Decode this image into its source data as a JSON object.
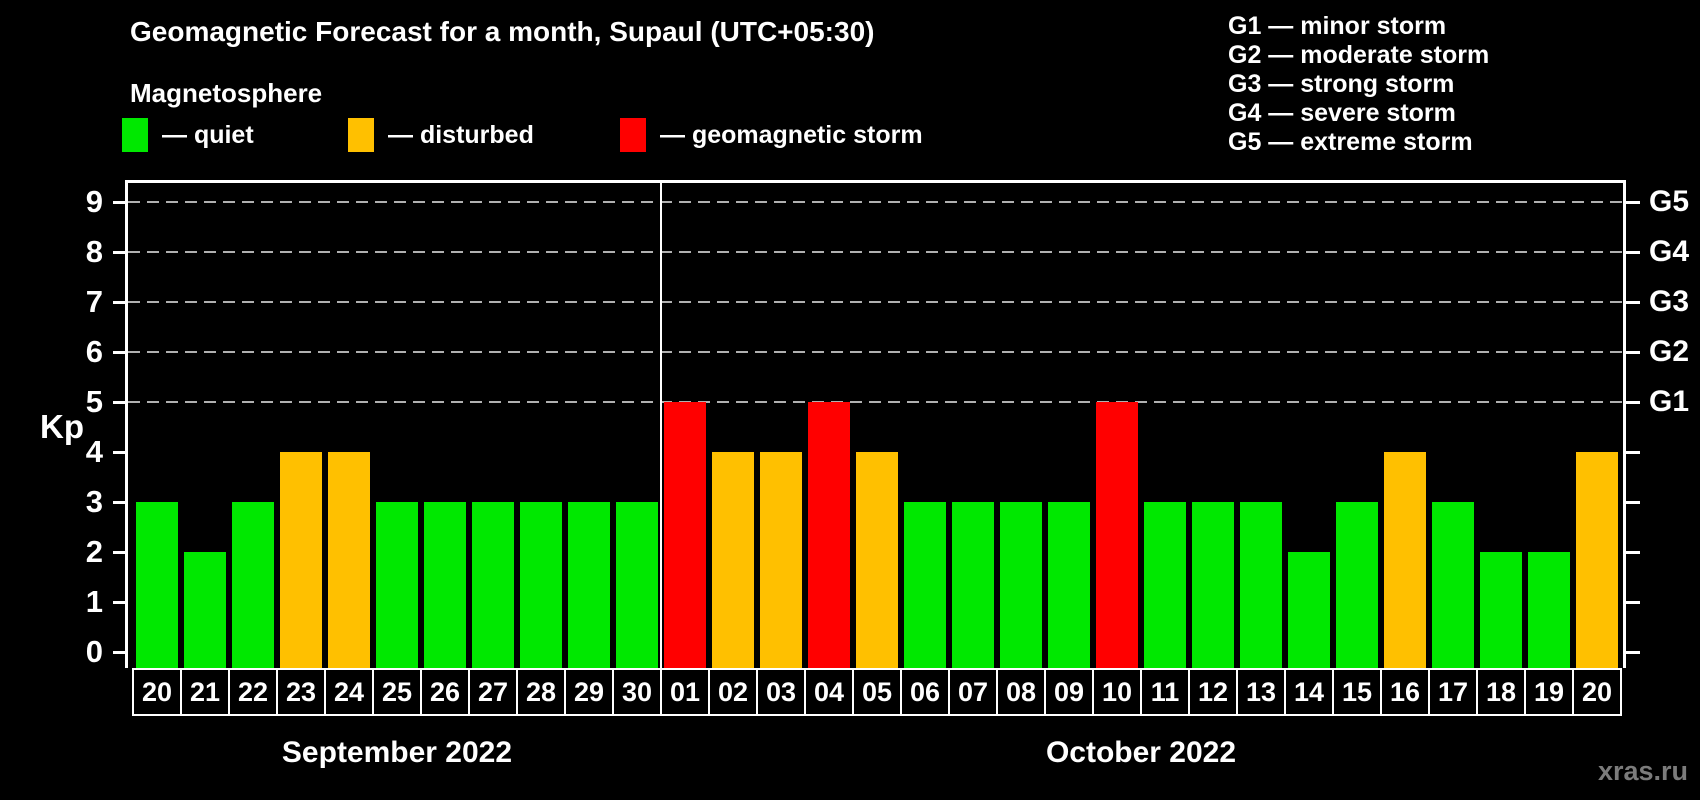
{
  "title": "Geomagnetic Forecast for a month, Supaul (UTC+05:30)",
  "subtitle": "Magnetosphere",
  "legend": {
    "quiet": {
      "label": "— quiet",
      "color": "#00e800"
    },
    "disturbed": {
      "label": "— disturbed",
      "color": "#ffc000"
    },
    "storm": {
      "label": "— geomagnetic storm",
      "color": "#ff0000"
    }
  },
  "g_legend": [
    "G1 — minor storm",
    "G2 — moderate storm",
    "G3 — strong storm",
    "G4 — severe storm",
    "G5 — extreme storm"
  ],
  "watermark": "xras.ru",
  "colors": {
    "background": "#000000",
    "axis": "#ffffff",
    "gridline": "#b0b0b0",
    "text": "#ffffff",
    "watermark": "#7b7b7b"
  },
  "chart_data": {
    "type": "bar",
    "title": "Geomagnetic Forecast for a month, Supaul (UTC+05:30)",
    "xlabel": "",
    "ylabel": "Kp",
    "ylim": [
      0,
      9
    ],
    "grid": "horizontal dashed lines at Kp 5,6,7,8,9",
    "legend_position": "top-left",
    "left_axis_ticks": [
      0,
      1,
      2,
      3,
      4,
      5,
      6,
      7,
      8,
      9
    ],
    "right_axis_labels": [
      {
        "kp": 5,
        "label": "G1"
      },
      {
        "kp": 6,
        "label": "G2"
      },
      {
        "kp": 7,
        "label": "G3"
      },
      {
        "kp": 8,
        "label": "G4"
      },
      {
        "kp": 9,
        "label": "G5"
      }
    ],
    "months": [
      {
        "label": "September 2022",
        "days": [
          {
            "day": "20",
            "kp": 3,
            "state": "quiet"
          },
          {
            "day": "21",
            "kp": 2,
            "state": "quiet"
          },
          {
            "day": "22",
            "kp": 3,
            "state": "quiet"
          },
          {
            "day": "23",
            "kp": 4,
            "state": "disturbed"
          },
          {
            "day": "24",
            "kp": 4,
            "state": "disturbed"
          },
          {
            "day": "25",
            "kp": 3,
            "state": "quiet"
          },
          {
            "day": "26",
            "kp": 3,
            "state": "quiet"
          },
          {
            "day": "27",
            "kp": 3,
            "state": "quiet"
          },
          {
            "day": "28",
            "kp": 3,
            "state": "quiet"
          },
          {
            "day": "29",
            "kp": 3,
            "state": "quiet"
          },
          {
            "day": "30",
            "kp": 3,
            "state": "quiet"
          }
        ]
      },
      {
        "label": "October 2022",
        "days": [
          {
            "day": "01",
            "kp": 5,
            "state": "storm"
          },
          {
            "day": "02",
            "kp": 4,
            "state": "disturbed"
          },
          {
            "day": "03",
            "kp": 4,
            "state": "disturbed"
          },
          {
            "day": "04",
            "kp": 5,
            "state": "storm"
          },
          {
            "day": "05",
            "kp": 4,
            "state": "disturbed"
          },
          {
            "day": "06",
            "kp": 3,
            "state": "quiet"
          },
          {
            "day": "07",
            "kp": 3,
            "state": "quiet"
          },
          {
            "day": "08",
            "kp": 3,
            "state": "quiet"
          },
          {
            "day": "09",
            "kp": 3,
            "state": "quiet"
          },
          {
            "day": "10",
            "kp": 5,
            "state": "storm"
          },
          {
            "day": "11",
            "kp": 3,
            "state": "quiet"
          },
          {
            "day": "12",
            "kp": 3,
            "state": "quiet"
          },
          {
            "day": "13",
            "kp": 3,
            "state": "quiet"
          },
          {
            "day": "14",
            "kp": 2,
            "state": "quiet"
          },
          {
            "day": "15",
            "kp": 3,
            "state": "quiet"
          },
          {
            "day": "16",
            "kp": 4,
            "state": "disturbed"
          },
          {
            "day": "17",
            "kp": 3,
            "state": "quiet"
          },
          {
            "day": "18",
            "kp": 2,
            "state": "quiet"
          },
          {
            "day": "19",
            "kp": 2,
            "state": "quiet"
          },
          {
            "day": "20",
            "kp": 4,
            "state": "disturbed"
          }
        ]
      }
    ]
  }
}
